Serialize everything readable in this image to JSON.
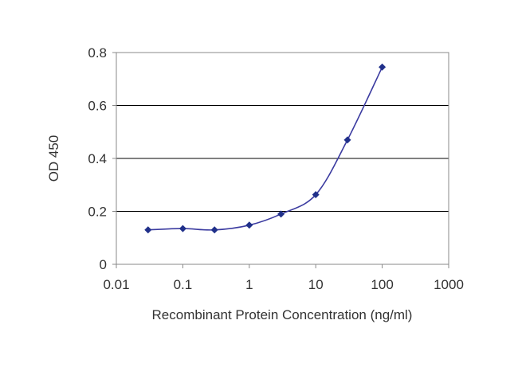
{
  "chart_data": {
    "type": "line",
    "xlabel": "Recombinant Protein Concentration (ng/ml)",
    "ylabel": "OD 450",
    "x_scale": "log",
    "xlim": [
      0.01,
      1000
    ],
    "ylim": [
      0,
      0.8
    ],
    "x_ticks": [
      0.01,
      0.1,
      1,
      10,
      100,
      1000
    ],
    "x_tick_labels": [
      "0.01",
      "0.1",
      "1",
      "10",
      "100",
      "1000"
    ],
    "y_ticks": [
      0,
      0.2,
      0.4,
      0.6,
      0.8
    ],
    "y_tick_labels": [
      "0",
      "0.2",
      "0.4",
      "0.6",
      "0.8"
    ],
    "grid": "horizontal",
    "legend": "none",
    "series": [
      {
        "x": [
          0.03,
          0.1,
          0.3,
          1,
          3,
          10,
          30,
          100
        ],
        "y": [
          0.13,
          0.135,
          0.13,
          0.148,
          0.19,
          0.263,
          0.47,
          0.745
        ]
      }
    ],
    "colors": {
      "line": "#3b3ba0",
      "marker": "#20308a",
      "grid": "#000000",
      "frame": "#888888"
    }
  }
}
